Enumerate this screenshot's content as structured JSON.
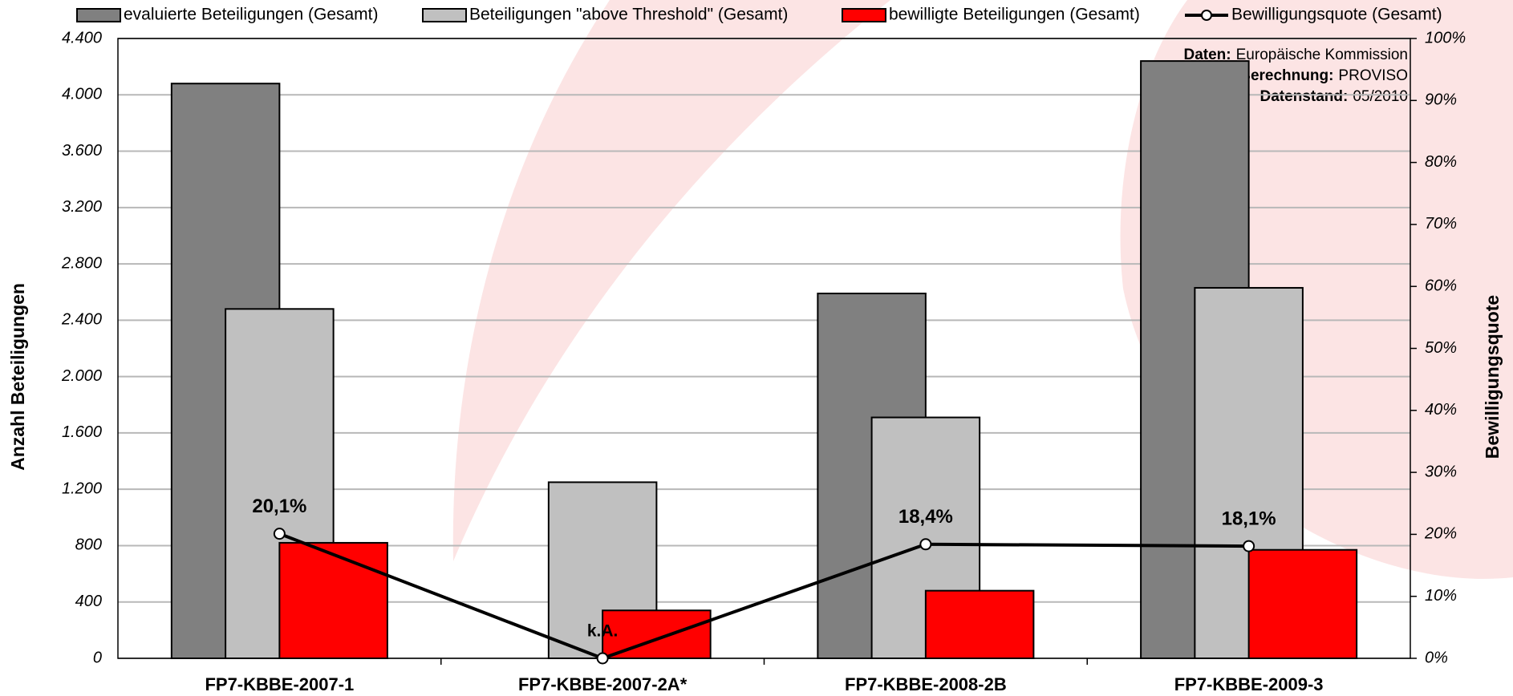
{
  "chart_data": {
    "type": "bar",
    "categories": [
      "FP7-KBBE-2007-1",
      "FP7-KBBE-2007-2A*",
      "FP7-KBBE-2008-2B",
      "FP7-KBBE-2009-3"
    ],
    "series": [
      {
        "name": "evaluierte Beteiligungen (Gesamt)",
        "color": "#808080",
        "values": [
          4080,
          null,
          2590,
          4240
        ]
      },
      {
        "name": "Beteiligungen \"above Threshold\" (Gesamt)",
        "color": "#c0c0c0",
        "values": [
          2480,
          1250,
          1710,
          2630
        ]
      },
      {
        "name": "bewilligte Beteiligungen (Gesamt)",
        "color": "#ff0000",
        "values": [
          820,
          340,
          480,
          770
        ]
      },
      {
        "name": "Bewilligungsquote (Gesamt)",
        "type": "line",
        "axis": "y2",
        "color": "#000000",
        "values": [
          20.1,
          0,
          18.4,
          18.1
        ],
        "value_labels": [
          "20,1%",
          "k.A.",
          "18,4%",
          "18,1%"
        ]
      }
    ],
    "ylabel": "Anzahl Beteiligungen",
    "y2label": "Bewilligungsquote",
    "ylim": [
      0,
      4400
    ],
    "yticks": [
      0,
      400,
      800,
      {
        "value": 1200,
        "label": "1.200"
      },
      {
        "value": 1600,
        "label": "1.600"
      },
      {
        "value": 2000,
        "label": "2.000"
      },
      {
        "value": 2400,
        "label": "2.400"
      },
      {
        "value": 2800,
        "label": "2.800"
      },
      {
        "value": 3200,
        "label": "3.200"
      },
      {
        "value": 3600,
        "label": "3.600"
      },
      {
        "value": 4000,
        "label": "4.000"
      },
      {
        "value": 4400,
        "label": "4.400"
      }
    ],
    "y2lim": [
      0,
      100
    ],
    "y2ticks": [
      {
        "value": 0,
        "label": "0%"
      },
      {
        "value": 10,
        "label": "10%"
      },
      {
        "value": 20,
        "label": "20%"
      },
      {
        "value": 30,
        "label": "30%"
      },
      {
        "value": 40,
        "label": "40%"
      },
      {
        "value": 50,
        "label": "50%"
      },
      {
        "value": 60,
        "label": "60%"
      },
      {
        "value": 70,
        "label": "70%"
      },
      {
        "value": 80,
        "label": "80%"
      },
      {
        "value": 90,
        "label": "90%"
      },
      {
        "value": 100,
        "label": "100%"
      }
    ],
    "grid": true,
    "legend": "top",
    "annotations": [
      {
        "label": "Daten:",
        "text": "Europäische Kommission"
      },
      {
        "label": "Berechnung:",
        "text": "PROVISO"
      },
      {
        "label": "Datenstand:",
        "text": "05/2010"
      }
    ]
  }
}
